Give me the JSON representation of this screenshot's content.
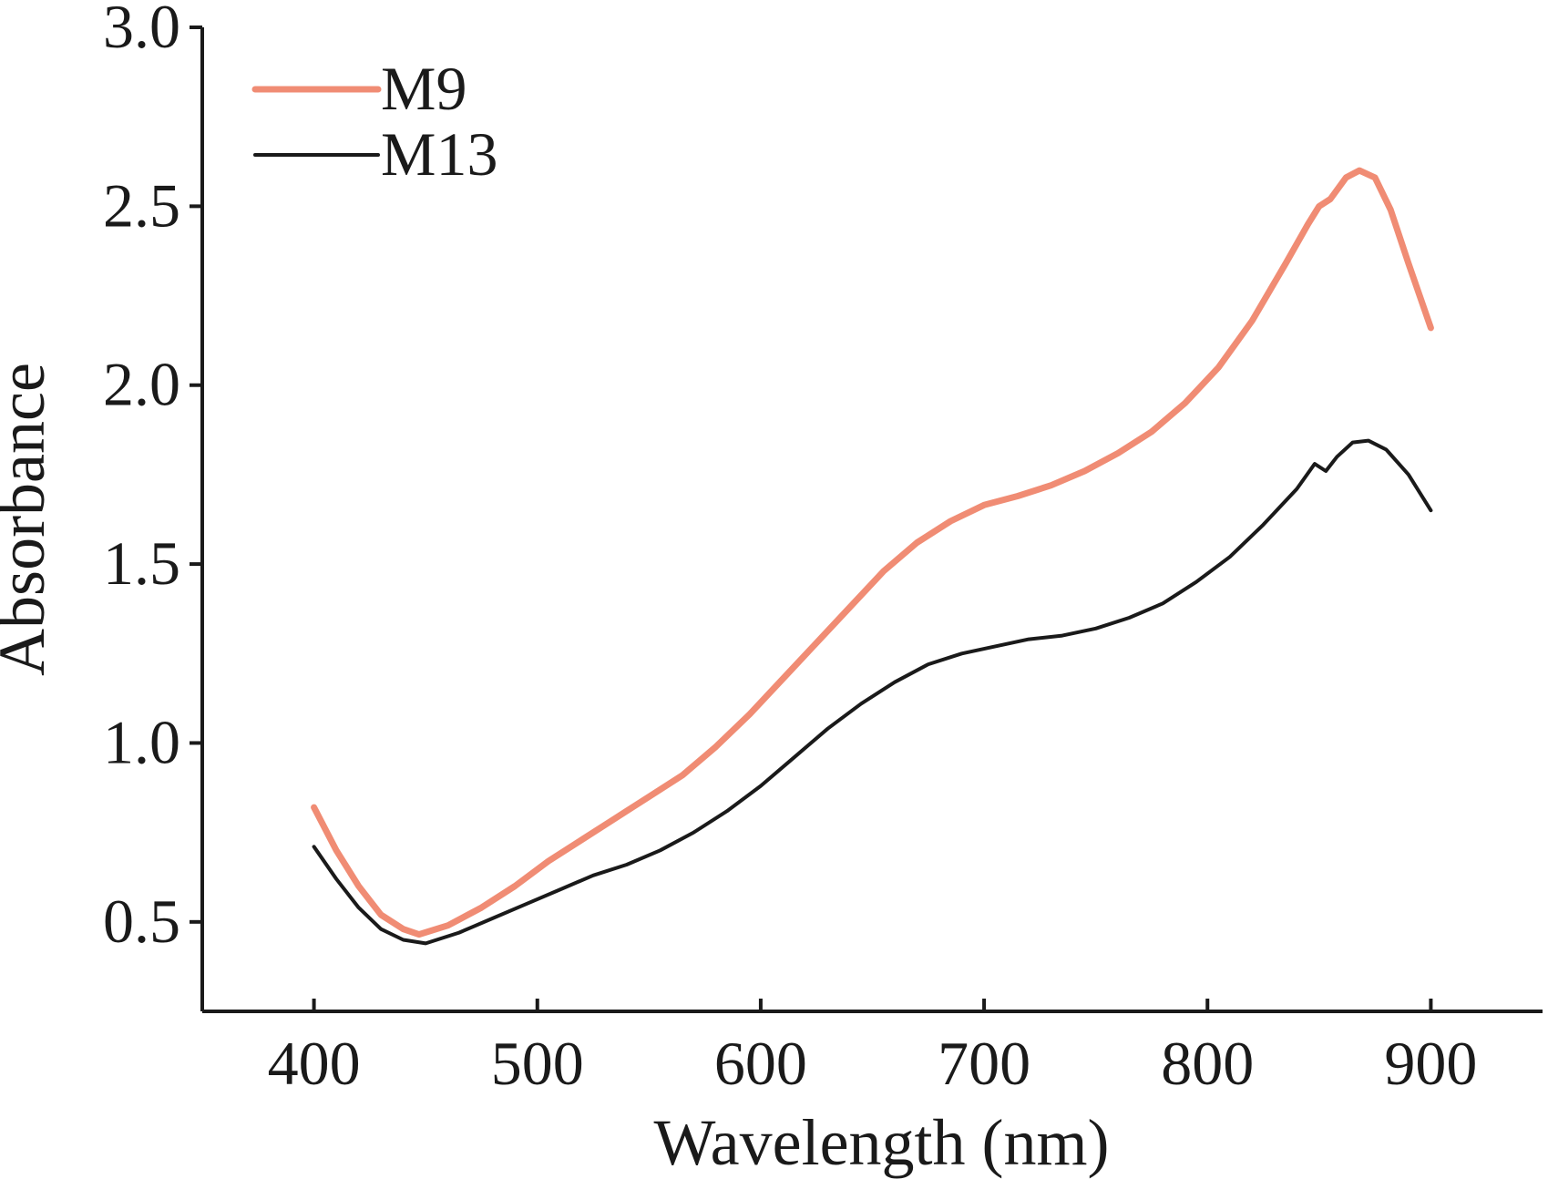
{
  "chart_data": {
    "type": "line",
    "title": "",
    "xlabel": "Wavelength (nm)",
    "ylabel": "Absorbance",
    "xlim": [
      350,
      950
    ],
    "ylim": [
      0.25,
      3.0
    ],
    "xticks": [
      400,
      500,
      600,
      700,
      800,
      900
    ],
    "yticks": [
      0.5,
      1.0,
      1.5,
      2.0,
      2.5,
      3.0
    ],
    "x_tick_labels": [
      "400",
      "500",
      "600",
      "700",
      "800",
      "900"
    ],
    "y_tick_labels": [
      "0.5",
      "1.0",
      "1.5",
      "2.0",
      "2.5",
      "3.0"
    ],
    "grid": false,
    "legend_position": "top-left",
    "series": [
      {
        "name": "M9",
        "color": "#f08c74",
        "points": [
          [
            400,
            0.82
          ],
          [
            410,
            0.7
          ],
          [
            420,
            0.6
          ],
          [
            430,
            0.52
          ],
          [
            440,
            0.48
          ],
          [
            447,
            0.465
          ],
          [
            460,
            0.49
          ],
          [
            475,
            0.54
          ],
          [
            490,
            0.6
          ],
          [
            505,
            0.67
          ],
          [
            520,
            0.73
          ],
          [
            535,
            0.79
          ],
          [
            550,
            0.85
          ],
          [
            565,
            0.91
          ],
          [
            580,
            0.99
          ],
          [
            595,
            1.08
          ],
          [
            610,
            1.18
          ],
          [
            625,
            1.28
          ],
          [
            640,
            1.38
          ],
          [
            655,
            1.48
          ],
          [
            670,
            1.56
          ],
          [
            685,
            1.62
          ],
          [
            700,
            1.665
          ],
          [
            715,
            1.69
          ],
          [
            730,
            1.72
          ],
          [
            745,
            1.76
          ],
          [
            760,
            1.81
          ],
          [
            775,
            1.87
          ],
          [
            790,
            1.95
          ],
          [
            805,
            2.05
          ],
          [
            820,
            2.18
          ],
          [
            835,
            2.34
          ],
          [
            845,
            2.45
          ],
          [
            850,
            2.5
          ],
          [
            855,
            2.52
          ],
          [
            862,
            2.58
          ],
          [
            868,
            2.6
          ],
          [
            875,
            2.58
          ],
          [
            882,
            2.49
          ],
          [
            890,
            2.34
          ],
          [
            900,
            2.16
          ]
        ]
      },
      {
        "name": "M13",
        "color": "#1a1a1a",
        "points": [
          [
            400,
            0.71
          ],
          [
            410,
            0.62
          ],
          [
            420,
            0.54
          ],
          [
            430,
            0.48
          ],
          [
            440,
            0.45
          ],
          [
            450,
            0.44
          ],
          [
            465,
            0.47
          ],
          [
            480,
            0.51
          ],
          [
            495,
            0.55
          ],
          [
            510,
            0.59
          ],
          [
            525,
            0.63
          ],
          [
            540,
            0.66
          ],
          [
            555,
            0.7
          ],
          [
            570,
            0.75
          ],
          [
            585,
            0.81
          ],
          [
            600,
            0.88
          ],
          [
            615,
            0.96
          ],
          [
            630,
            1.04
          ],
          [
            645,
            1.11
          ],
          [
            660,
            1.17
          ],
          [
            675,
            1.22
          ],
          [
            690,
            1.25
          ],
          [
            705,
            1.27
          ],
          [
            720,
            1.29
          ],
          [
            735,
            1.3
          ],
          [
            750,
            1.32
          ],
          [
            765,
            1.35
          ],
          [
            780,
            1.39
          ],
          [
            795,
            1.45
          ],
          [
            810,
            1.52
          ],
          [
            825,
            1.61
          ],
          [
            840,
            1.71
          ],
          [
            848,
            1.78
          ],
          [
            853,
            1.76
          ],
          [
            858,
            1.8
          ],
          [
            865,
            1.84
          ],
          [
            872,
            1.845
          ],
          [
            880,
            1.82
          ],
          [
            890,
            1.75
          ],
          [
            900,
            1.65
          ]
        ]
      }
    ]
  }
}
